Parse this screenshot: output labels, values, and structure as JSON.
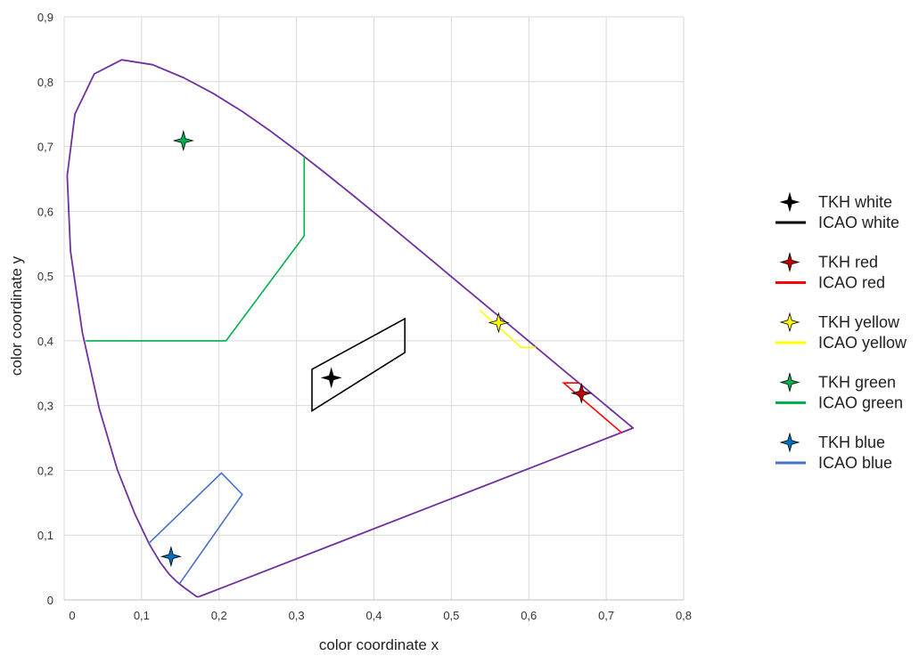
{
  "chart_data": {
    "type": "scatter",
    "title": "",
    "xlabel": "color  coordinate  x",
    "ylabel": "color  coordinate  y",
    "xlim": [
      0,
      0.8
    ],
    "ylim": [
      0,
      0.9
    ],
    "grid": true,
    "legend_position": "right",
    "x_ticks": [
      {
        "value": 0,
        "label": "0"
      },
      {
        "value": 0.1,
        "label": "0,1"
      },
      {
        "value": 0.2,
        "label": "0,2"
      },
      {
        "value": 0.3,
        "label": "0,3"
      },
      {
        "value": 0.4,
        "label": "0,4"
      },
      {
        "value": 0.5,
        "label": "0,5"
      },
      {
        "value": 0.6,
        "label": "0,6"
      },
      {
        "value": 0.7,
        "label": "0,7"
      },
      {
        "value": 0.8,
        "label": "0,8"
      }
    ],
    "y_ticks": [
      {
        "value": 0,
        "label": "0"
      },
      {
        "value": 0.1,
        "label": "0,1"
      },
      {
        "value": 0.2,
        "label": "0,2"
      },
      {
        "value": 0.3,
        "label": "0,3"
      },
      {
        "value": 0.4,
        "label": "0,4"
      },
      {
        "value": 0.5,
        "label": "0,5"
      },
      {
        "value": 0.6,
        "label": "0,6"
      },
      {
        "value": 0.7,
        "label": "0,7"
      },
      {
        "value": 0.8,
        "label": "0,8"
      },
      {
        "value": 0.9,
        "label": "0,9"
      }
    ],
    "spectral_locus": {
      "color": "#7030a0",
      "points": [
        [
          0.1741,
          0.005
        ],
        [
          0.1738,
          0.0049
        ],
        [
          0.1736,
          0.0049
        ],
        [
          0.1733,
          0.0048
        ],
        [
          0.173,
          0.0048
        ],
        [
          0.1726,
          0.0048
        ],
        [
          0.1721,
          0.0048
        ],
        [
          0.1714,
          0.0051
        ],
        [
          0.1703,
          0.0058
        ],
        [
          0.1689,
          0.0069
        ],
        [
          0.1669,
          0.0086
        ],
        [
          0.1644,
          0.0109
        ],
        [
          0.1611,
          0.0138
        ],
        [
          0.1566,
          0.0177
        ],
        [
          0.151,
          0.0227
        ],
        [
          0.144,
          0.0297
        ],
        [
          0.1355,
          0.0399
        ],
        [
          0.1241,
          0.0578
        ],
        [
          0.1096,
          0.0868
        ],
        [
          0.0913,
          0.1327
        ],
        [
          0.0687,
          0.2007
        ],
        [
          0.0454,
          0.295
        ],
        [
          0.0235,
          0.4127
        ],
        [
          0.0082,
          0.5384
        ],
        [
          0.0039,
          0.6548
        ],
        [
          0.0139,
          0.7502
        ],
        [
          0.0389,
          0.812
        ],
        [
          0.0743,
          0.8338
        ],
        [
          0.1142,
          0.8262
        ],
        [
          0.1547,
          0.8059
        ],
        [
          0.1929,
          0.7816
        ],
        [
          0.2296,
          0.7543
        ],
        [
          0.2658,
          0.7243
        ],
        [
          0.3016,
          0.6923
        ],
        [
          0.3373,
          0.6589
        ],
        [
          0.3731,
          0.6245
        ],
        [
          0.4087,
          0.5896
        ],
        [
          0.4441,
          0.5547
        ],
        [
          0.4788,
          0.5202
        ],
        [
          0.5125,
          0.4866
        ],
        [
          0.5448,
          0.4544
        ],
        [
          0.5752,
          0.4242
        ],
        [
          0.6029,
          0.3965
        ],
        [
          0.627,
          0.3725
        ],
        [
          0.6482,
          0.3514
        ],
        [
          0.6658,
          0.334
        ],
        [
          0.6801,
          0.3197
        ],
        [
          0.6915,
          0.3083
        ],
        [
          0.7006,
          0.2993
        ],
        [
          0.7079,
          0.292
        ],
        [
          0.714,
          0.2859
        ],
        [
          0.719,
          0.2809
        ],
        [
          0.723,
          0.277
        ],
        [
          0.726,
          0.274
        ],
        [
          0.7283,
          0.2717
        ],
        [
          0.73,
          0.27
        ],
        [
          0.7311,
          0.2689
        ],
        [
          0.732,
          0.268
        ],
        [
          0.7327,
          0.2673
        ],
        [
          0.7334,
          0.2666
        ],
        [
          0.734,
          0.266
        ],
        [
          0.7344,
          0.2656
        ],
        [
          0.7347,
          0.2653
        ],
        [
          0.1741,
          0.005
        ]
      ]
    },
    "series": [
      {
        "name": "TKH white",
        "kind": "point",
        "color": "#000000",
        "x": 0.345,
        "y": 0.343
      },
      {
        "name": "ICAO white",
        "kind": "region",
        "color": "#000000",
        "points": [
          [
            0.32,
            0.356
          ],
          [
            0.44,
            0.434
          ],
          [
            0.44,
            0.382
          ],
          [
            0.32,
            0.292
          ]
        ],
        "closed": true
      },
      {
        "name": "TKH red",
        "kind": "point",
        "color": "#c00000",
        "x": 0.668,
        "y": 0.319
      },
      {
        "name": "ICAO red",
        "kind": "region",
        "color": "#ff0000",
        "points": [
          [
            0.72,
            0.258
          ],
          [
            0.645,
            0.335
          ],
          [
            0.665,
            0.335
          ]
        ],
        "closed": false
      },
      {
        "name": "TKH yellow",
        "kind": "point",
        "color": "#ffff00",
        "x": 0.561,
        "y": 0.428
      },
      {
        "name": "ICAO yellow",
        "kind": "region",
        "color": "#ffff00",
        "points": [
          [
            0.537,
            0.447
          ],
          [
            0.59,
            0.39
          ],
          [
            0.609,
            0.39
          ]
        ],
        "closed": false
      },
      {
        "name": "TKH green",
        "kind": "point",
        "color": "#00b050",
        "x": 0.154,
        "y": 0.709
      },
      {
        "name": "ICAO green",
        "kind": "region",
        "color": "#00b050",
        "points": [
          [
            0.31,
            0.685
          ],
          [
            0.31,
            0.562
          ],
          [
            0.209,
            0.4
          ],
          [
            0.028,
            0.4
          ]
        ],
        "closed": false
      },
      {
        "name": "TKH blue",
        "kind": "point",
        "color": "#0070c0",
        "x": 0.138,
        "y": 0.067
      },
      {
        "name": "ICAO blue",
        "kind": "region",
        "color": "#4472c4",
        "points": [
          [
            0.149,
            0.025
          ],
          [
            0.23,
            0.163
          ],
          [
            0.203,
            0.196
          ],
          [
            0.109,
            0.087
          ]
        ],
        "closed": false
      }
    ]
  }
}
